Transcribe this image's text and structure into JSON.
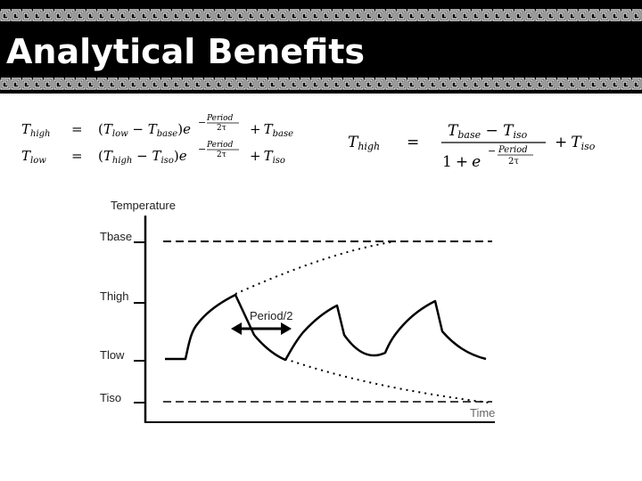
{
  "title": "Analytical Benefits",
  "equations": {
    "eq1": {
      "lhs": "T",
      "lhs_sub": "high",
      "equals": "=",
      "open": "(",
      "t1": "T",
      "t1_sub": "low",
      "minus": " − ",
      "t2": "T",
      "t2_sub": "base",
      "close": ")",
      "e": "e",
      "exp_sign": "−",
      "exp_num": "Period",
      "exp_den": "2τ",
      "plus": "+",
      "t3": "T",
      "t3_sub": "base"
    },
    "eq2": {
      "lhs": "T",
      "lhs_sub": "low",
      "equals": "=",
      "open": "(",
      "t1": "T",
      "t1_sub": "high",
      "minus": " − ",
      "t2": "T",
      "t2_sub": "iso",
      "close": ")",
      "e": "e",
      "exp_sign": "−",
      "exp_num": "Period",
      "exp_den": "2τ",
      "plus": "+",
      "t3": "T",
      "t3_sub": "iso"
    },
    "eq3": {
      "lhs": "T",
      "lhs_sub": "high",
      "equals": "=",
      "num_t1": "T",
      "num_t1_sub": "base",
      "num_minus": " − ",
      "num_t2": "T",
      "num_t2_sub": "iso",
      "den_one": "1",
      "den_plus": "+",
      "den_e": "e",
      "den_exp_sign": "−",
      "den_exp_num": "Period",
      "den_exp_den": "2τ",
      "plus": "+",
      "t3": "T",
      "t3_sub": "iso"
    }
  },
  "diagram": {
    "y_axis_label": "Temperature",
    "x_axis_label": "Time",
    "level_labels": [
      "Tbase",
      "Thigh",
      "Tlow",
      "Tiso"
    ],
    "annotation": "Period/2"
  }
}
